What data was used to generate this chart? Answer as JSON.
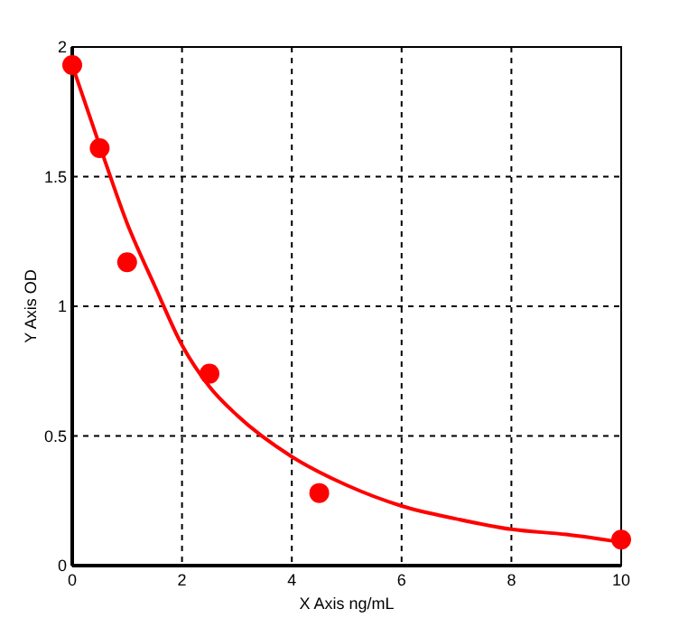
{
  "chart_data": {
    "type": "scatter",
    "xlabel": "X Axis ng/mL",
    "ylabel": "Y Axis OD",
    "xlim": [
      0,
      10
    ],
    "ylim": [
      0,
      2
    ],
    "xticks": [
      0,
      2,
      4,
      6,
      8,
      10
    ],
    "yticks": [
      0,
      0.5,
      1,
      1.5,
      2
    ],
    "grid": true,
    "marker": "circle",
    "series": [
      {
        "color": "#ff0000",
        "x": [
          0,
          0.5,
          1,
          2.5,
          4.5,
          10
        ],
        "values": [
          1.93,
          1.61,
          1.17,
          0.74,
          0.28,
          0.1
        ]
      },
      {
        "type": "line",
        "color": "#ff0000",
        "marker": "none",
        "line_style": "solid",
        "x": [
          0,
          0.5,
          1,
          1.5,
          2,
          2.5,
          3,
          4,
          5,
          6,
          7,
          8,
          9,
          10
        ],
        "values": [
          1.93,
          1.62,
          1.32,
          1.08,
          0.85,
          0.69,
          0.58,
          0.42,
          0.31,
          0.23,
          0.18,
          0.14,
          0.12,
          0.09
        ]
      }
    ]
  }
}
